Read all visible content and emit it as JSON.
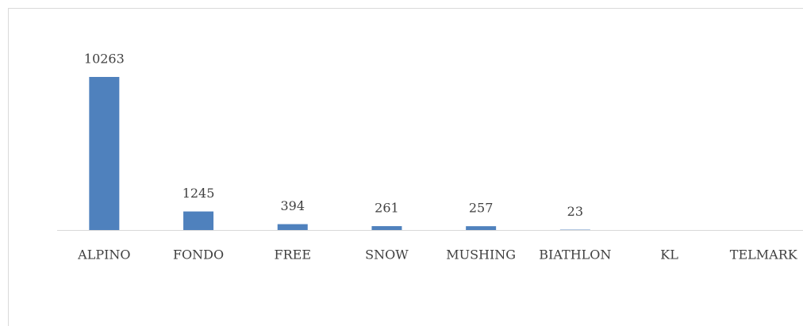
{
  "chart_data": {
    "type": "bar",
    "categories": [
      "ALPINO",
      "FONDO",
      "FREE",
      "SNOW",
      "MUSHING",
      "BIATHLON",
      "KL",
      "TELMARK"
    ],
    "values": [
      10263,
      1245,
      394,
      261,
      257,
      23,
      null,
      null
    ],
    "color": "#4f81bd"
  }
}
